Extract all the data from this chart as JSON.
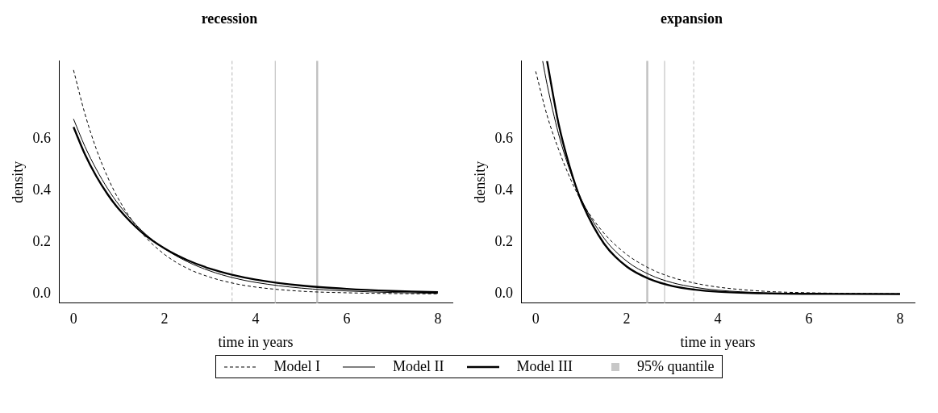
{
  "chart_data": [
    {
      "type": "line",
      "title": "recession",
      "xlabel": "time in years",
      "ylabel": "density",
      "xlim": [
        -0.32,
        8.32
      ],
      "ylim": [
        -0.035,
        0.9
      ],
      "xticks": [
        0,
        2,
        4,
        6,
        8
      ],
      "yticks": [
        {
          "value": 0,
          "label": "0.0"
        },
        0.2,
        0.4,
        0.6
      ],
      "grid": false,
      "legend": "bottom",
      "series": [
        {
          "name": "Model I",
          "color": "#000000",
          "line_style": "dashed",
          "x": [
            0,
            0.25,
            0.5,
            0.75,
            1,
            1.5,
            2,
            2.5,
            3,
            3.5,
            4,
            5,
            6,
            7,
            8
          ],
          "values": [
            0.865,
            0.696,
            0.56,
            0.451,
            0.363,
            0.236,
            0.153,
            0.099,
            0.065,
            0.042,
            0.027,
            0.011,
            0.005,
            0.002,
            0.001
          ]
        },
        {
          "name": "Model II",
          "color": "#000000",
          "line_style": "solid",
          "x": [
            0,
            0.25,
            0.5,
            0.75,
            1,
            1.5,
            2,
            2.5,
            3,
            3.5,
            4,
            5,
            6,
            7,
            8
          ],
          "values": [
            0.676,
            0.57,
            0.482,
            0.407,
            0.344,
            0.245,
            0.175,
            0.125,
            0.089,
            0.063,
            0.045,
            0.023,
            0.012,
            0.006,
            0.003
          ]
        },
        {
          "name": "Model III",
          "color": "#000000",
          "line_style": "solid",
          "x": [
            0,
            0.25,
            0.5,
            0.75,
            1,
            1.5,
            2,
            2.5,
            3,
            3.5,
            4,
            5,
            6,
            7,
            8
          ],
          "values": [
            0.645,
            0.54,
            0.455,
            0.385,
            0.327,
            0.238,
            0.176,
            0.131,
            0.098,
            0.074,
            0.056,
            0.033,
            0.02,
            0.012,
            0.007
          ]
        }
      ],
      "ref_lines": [
        {
          "axis": "x",
          "value": 3.48,
          "label": "95% quantile",
          "color": "#c8c8c8",
          "line_style": "dashed"
        },
        {
          "axis": "x",
          "value": 4.43,
          "color": "#c8c8c8",
          "line_style": "solid"
        },
        {
          "axis": "x",
          "value": 5.35,
          "color": "#c0c0c0",
          "line_style": "solid"
        }
      ]
    },
    {
      "type": "line",
      "title": "expansion",
      "xlabel": "time in years",
      "ylabel": "density",
      "xlim": [
        -0.32,
        8.32
      ],
      "ylim": [
        -0.035,
        0.9
      ],
      "xticks": [
        0,
        2,
        4,
        6,
        8
      ],
      "yticks": [
        {
          "value": 0,
          "label": "0.0"
        },
        0.2,
        0.4,
        0.6
      ],
      "grid": false,
      "series": [
        {
          "color": "#000000",
          "line_style": "dashed",
          "x": [
            0,
            0.25,
            0.5,
            0.75,
            1,
            1.5,
            2,
            2.5,
            3,
            3.5,
            4,
            5,
            6,
            8
          ],
          "values": [
            0.86,
            0.69,
            0.56,
            0.45,
            0.36,
            0.235,
            0.153,
            0.099,
            0.064,
            0.042,
            0.027,
            0.011,
            0.005,
            0.001
          ]
        },
        {
          "color": "#000000",
          "line_style": "solid",
          "x": [
            0.153,
            0.25,
            0.5,
            0.75,
            1,
            1.5,
            2,
            2.5,
            3,
            3.5,
            4,
            5,
            6,
            8
          ],
          "values": [
            0.9,
            0.81,
            0.62,
            0.478,
            0.367,
            0.216,
            0.127,
            0.075,
            0.044,
            0.026,
            0.015,
            0.005,
            0.002,
            0
          ]
        },
        {
          "color": "#000000",
          "line_style": "solid",
          "x": [
            0.25,
            0.5,
            0.75,
            1,
            1.5,
            2,
            2.5,
            3,
            3.5,
            4,
            5,
            6,
            8
          ],
          "values": [
            0.9,
            0.66,
            0.49,
            0.36,
            0.195,
            0.106,
            0.058,
            0.031,
            0.017,
            0.009,
            0.003,
            0.001,
            0
          ]
        }
      ],
      "ref_lines": [
        {
          "axis": "x",
          "value": 3.47,
          "color": "#c8c8c8",
          "line_style": "dashed"
        },
        {
          "axis": "x",
          "value": 2.83,
          "color": "#c8c8c8",
          "line_style": "solid"
        },
        {
          "axis": "x",
          "value": 2.45,
          "color": "#c0c0c0",
          "line_style": "solid"
        }
      ]
    }
  ]
}
